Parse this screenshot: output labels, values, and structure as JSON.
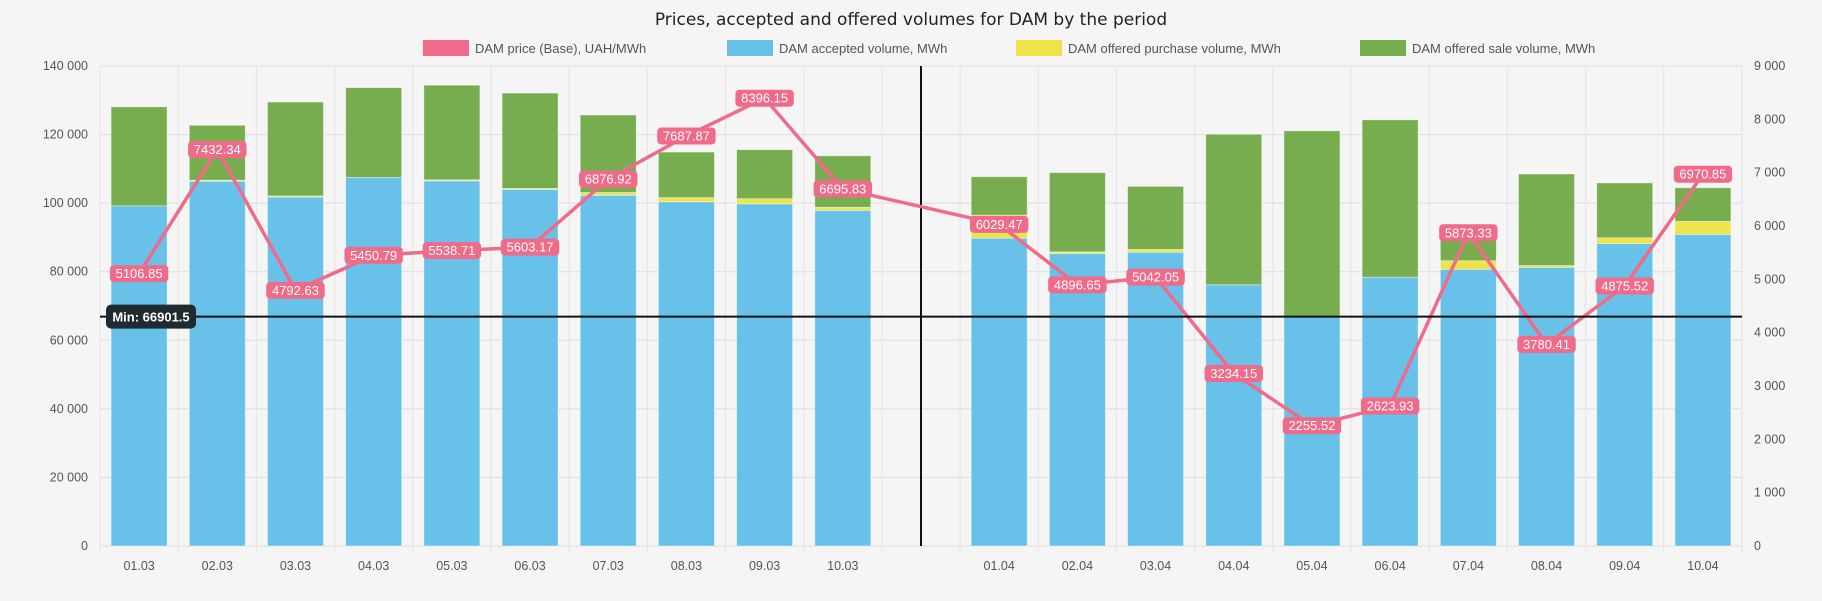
{
  "chart_data": {
    "type": "bar",
    "title": "Prices, accepted and offered volumes for DAM by the period",
    "legend": [
      {
        "name": "DAM price (Base), UAH/MWh",
        "color": "#f06b8a"
      },
      {
        "name": "DAM accepted volume, MWh",
        "color": "#68c1e8"
      },
      {
        "name": "DAM offered purchase volume, MWh",
        "color": "#ece44a"
      },
      {
        "name": "DAM offered sale volume, MWh",
        "color": "#78ad4f"
      }
    ],
    "legend_position": "top-center",
    "grid": true,
    "stacked": true,
    "categories": [
      "01.03",
      "02.03",
      "03.03",
      "04.03",
      "05.03",
      "06.03",
      "07.03",
      "08.03",
      "09.03",
      "10.03",
      "",
      "01.04",
      "02.04",
      "03.04",
      "04.04",
      "05.04",
      "06.04",
      "07.04",
      "08.04",
      "09.04",
      "10.04"
    ],
    "y_left": {
      "min": 0,
      "max": 140000,
      "ticks": [
        "0",
        "20 000",
        "40 000",
        "60 000",
        "80 000",
        "100 000",
        "120 000",
        "140 000"
      ]
    },
    "y_right": {
      "min": 0,
      "max": 9000,
      "ticks": [
        "0",
        "1 000",
        "2 000",
        "3 000",
        "4 000",
        "5 000",
        "6 000",
        "7 000",
        "8 000",
        "9 000"
      ]
    },
    "series": [
      {
        "name": "DAM accepted volume, MWh",
        "axis": "left",
        "values": [
          99200,
          106400,
          101800,
          107500,
          106500,
          104000,
          102300,
          100400,
          99800,
          97900,
          null,
          89800,
          85300,
          85700,
          76200,
          66900,
          78400,
          80700,
          81300,
          88200,
          90900
        ]
      },
      {
        "name": "DAM offered purchase volume, MWh",
        "axis": "left",
        "values": [
          0,
          300,
          300,
          0,
          300,
          300,
          800,
          1200,
          1500,
          900,
          null,
          6700,
          500,
          800,
          0,
          0,
          0,
          2500,
          500,
          1700,
          3800
        ]
      },
      {
        "name": "DAM offered sale volume, MWh",
        "axis": "left",
        "values": [
          28900,
          16000,
          27400,
          26200,
          27600,
          27800,
          22600,
          13300,
          14300,
          15000,
          null,
          11200,
          23100,
          18400,
          43900,
          54200,
          45900,
          9400,
          26700,
          16000,
          9800
        ]
      },
      {
        "name": "DAM price (Base), UAH/MWh",
        "axis": "right",
        "type": "line",
        "values": [
          5106.85,
          7432.34,
          4792.63,
          5450.79,
          5538.71,
          5603.17,
          6876.92,
          7687.87,
          8396.15,
          6695.83,
          null,
          6029.47,
          4896.65,
          5042.05,
          3234.15,
          2255.52,
          2623.93,
          5873.33,
          3780.41,
          4875.52,
          6970.85
        ],
        "labels": [
          "5106.85",
          "7432.34",
          "4792.63",
          "5450.79",
          "5538.71",
          "5603.17",
          "6876.92",
          "7687.87",
          "8396.15",
          "6695.83",
          "",
          "6029.47",
          "4896.65",
          "5042.05",
          "3234.15",
          "2255.52",
          "2623.93",
          "5873.33",
          "3780.41",
          "4875.52",
          "6970.85"
        ]
      }
    ],
    "min_line": {
      "value": 66901.5,
      "label": "Min: 66901.5"
    },
    "divider_after_index": 10
  }
}
